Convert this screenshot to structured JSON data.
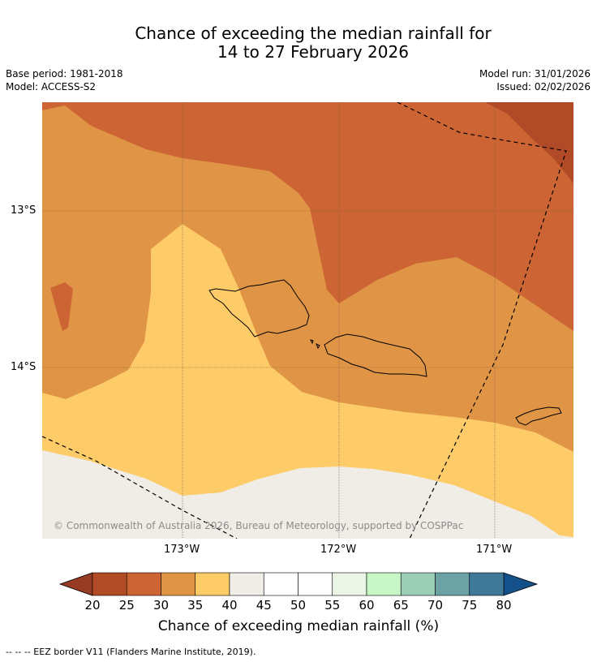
{
  "title": {
    "line1": "Chance of exceeding the median rainfall for",
    "line2": "14 to 27 February 2026"
  },
  "meta": {
    "base_period": "Base period: 1981-2018",
    "model": "Model: ACCESS-S2",
    "model_run": "Model run: 31/01/2026",
    "issued": "Issued: 02/02/2026"
  },
  "map": {
    "lat_labels": [
      "13°S",
      "14°S"
    ],
    "lon_labels": [
      "173°W",
      "172°W",
      "171°W"
    ],
    "copyright": "© Commonwealth of Australia 2026, Bureau of Meteorology, supported by COSPPac",
    "fill_colors": {
      "band_20_25": "#b14b27",
      "band_25_30": "#cc6433",
      "band_30_35": "#e09445",
      "band_35_40": "#fdcb68",
      "band_40_45": "#f0ece6"
    }
  },
  "colorbar": {
    "ticks": [
      "20",
      "25",
      "30",
      "35",
      "40",
      "45",
      "50",
      "55",
      "60",
      "65",
      "70",
      "75",
      "80"
    ],
    "colors": [
      "#b14b27",
      "#cc6433",
      "#e09445",
      "#fdcb68",
      "#f0ece6",
      "#ffffff",
      "#ffffff",
      "#eaf5e6",
      "#c7f7c7",
      "#9ccdb5",
      "#6ea3a6",
      "#3f7899"
    ],
    "under_color": "#973b22",
    "over_color": "#14508a",
    "label": "Chance of exceeding median rainfall (%)"
  },
  "footnote": "--  --  -- EEZ border V11 (Flanders Marine Institute, 2019)."
}
